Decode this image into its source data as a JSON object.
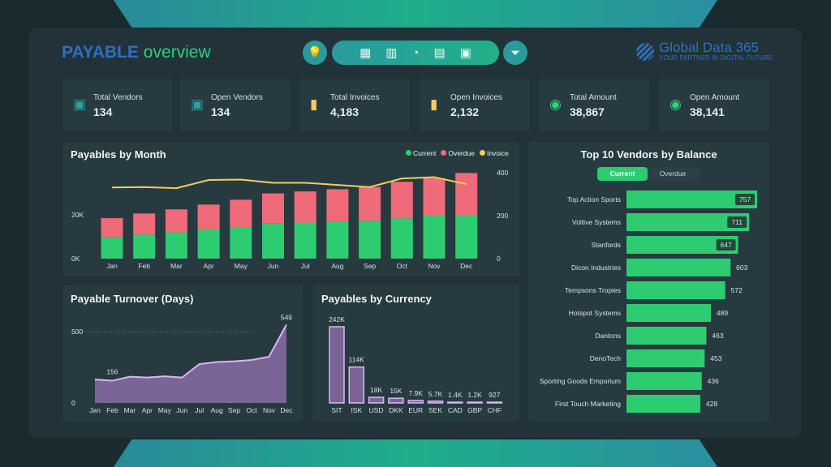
{
  "header": {
    "title_part1": "PAYABLE",
    "title_part2": "overview",
    "nav_icons": [
      "dashboard-icon",
      "bar-chart-icon",
      "donut-chart-icon",
      "document-icon",
      "store-icon"
    ],
    "logo_name": "Global Data 365",
    "logo_tagline": "YOUR PARTNER IN DIGITAL FUTURE"
  },
  "kpis": [
    {
      "label": "Total Vendors",
      "value": "134",
      "icon": "store-icon",
      "color": "#2aa3a0"
    },
    {
      "label": "Open Vendors",
      "value": "134",
      "icon": "store-icon",
      "color": "#2aa3a0"
    },
    {
      "label": "Total Invoices",
      "value": "4,183",
      "icon": "receipt-icon",
      "color": "#f2cf5b"
    },
    {
      "label": "Open Invoices",
      "value": "2,132",
      "icon": "receipt-icon",
      "color": "#f2cf5b"
    },
    {
      "label": "Total Amount",
      "value": "38,867",
      "icon": "coins-icon",
      "color": "#2fcf7e"
    },
    {
      "label": "Open Amount",
      "value": "38,141",
      "icon": "coins-icon",
      "color": "#2fcf7e"
    }
  ],
  "colors": {
    "current": "#2ecc71",
    "overdue": "#f06b7a",
    "invoice": "#f2cf5b",
    "turnover": "#7b6496",
    "turnover_line": "#d9b8f0"
  },
  "chart_data": [
    {
      "type": "bar",
      "title": "Payables by Month",
      "categories": [
        "Jan",
        "Feb",
        "Mar",
        "Apr",
        "May",
        "Jun",
        "Jul",
        "Aug",
        "Sep",
        "Oct",
        "Nov",
        "Dec"
      ],
      "y_ticks": [
        "0K",
        "20K"
      ],
      "y2_ticks": [
        "0",
        "200",
        "400"
      ],
      "ylim": [
        0,
        40000
      ],
      "y2lim": [
        0,
        400
      ],
      "stacked": true,
      "legend": "top-right",
      "series": [
        {
          "name": "Current",
          "values": [
            9900,
            11000,
            12000,
            13500,
            14300,
            16000,
            16500,
            16700,
            17300,
            18400,
            20000,
            20000
          ]
        },
        {
          "name": "Overdue",
          "values": [
            8600,
            9600,
            10500,
            11200,
            12600,
            13800,
            14200,
            15000,
            15400,
            16700,
            16700,
            19100
          ]
        },
        {
          "name": "Invoice",
          "type": "line",
          "axis": "right",
          "values": [
            331,
            333,
            328,
            366,
            368,
            353,
            353,
            343,
            333,
            373,
            379,
            347
          ]
        }
      ]
    },
    {
      "type": "area",
      "title": "Payable Turnover (Days)",
      "categories": [
        "Jan",
        "Feb",
        "Mar",
        "Apr",
        "May",
        "Jun",
        "Jul",
        "Aug",
        "Sep",
        "Oct",
        "Nov",
        "Dec"
      ],
      "values": [
        165,
        156,
        184,
        178,
        187,
        178,
        272,
        287,
        292,
        301,
        324,
        549
      ],
      "y_ticks": [
        "0",
        "500"
      ],
      "ylim": [
        0,
        500
      ],
      "data_labels": {
        "Feb": "156",
        "Dec": "549"
      }
    },
    {
      "type": "bar",
      "title": "Payables by Currency",
      "categories": [
        "SIT",
        "ISK",
        "USD",
        "DKK",
        "EUR",
        "SEK",
        "CAD",
        "GBP",
        "CHF"
      ],
      "values": [
        242000,
        114000,
        18000,
        15000,
        7900,
        5700,
        1400,
        1200,
        927
      ],
      "labels": [
        "242K",
        "114K",
        "18K",
        "15K",
        "7.9K",
        "5.7K",
        "1.4K",
        "1.2K",
        "927"
      ]
    },
    {
      "type": "bar",
      "orientation": "horizontal",
      "title": "Top 10 Vendors by Balance",
      "categories": [
        "Top Action Sports",
        "Voltive Systems",
        "Stanfords",
        "Dicon Industries",
        "Tempsons Tropies",
        "Hotspot Systems",
        "Dantons",
        "DenoTech",
        "Sporting Goods Emporium",
        "First Touch Marketing"
      ],
      "values": [
        757,
        711,
        647,
        603,
        572,
        489,
        463,
        453,
        436,
        428
      ],
      "toggle": {
        "options": [
          "Current",
          "Overdue"
        ],
        "selected": "Current"
      }
    }
  ]
}
